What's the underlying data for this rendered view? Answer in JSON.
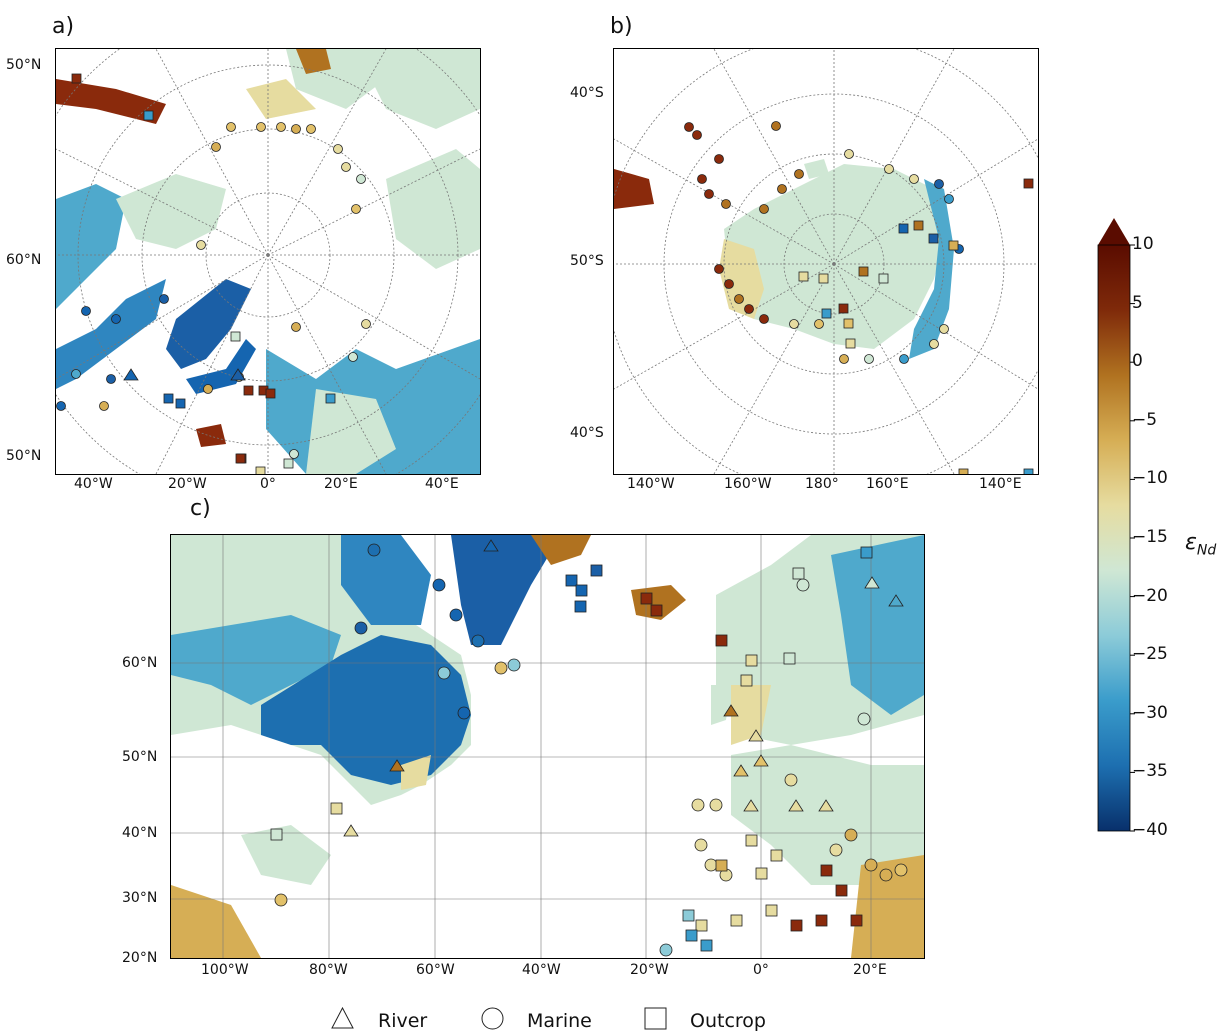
{
  "panels": {
    "a": {
      "label": "a)",
      "lat_ticks": [
        "50°N",
        "60°N",
        "50°N"
      ],
      "lon_ticks": [
        "40°W",
        "20°W",
        "0°",
        "20°E",
        "40°E"
      ]
    },
    "b": {
      "label": "b)",
      "lat_ticks": [
        "40°S",
        "50°S",
        "40°S"
      ],
      "lon_ticks": [
        "140°W",
        "160°W",
        "180°",
        "160°E",
        "140°E"
      ]
    },
    "c": {
      "label": "c)",
      "lat_ticks": [
        "60°N",
        "50°N",
        "40°N",
        "30°N",
        "20°N"
      ],
      "lon_ticks": [
        "100°W",
        "80°W",
        "60°W",
        "40°W",
        "20°W",
        "0°",
        "20°E"
      ]
    }
  },
  "colorbar": {
    "label_main": "ε",
    "label_sub": "Nd",
    "ticks": [
      "10",
      "5",
      "0",
      "−5",
      "−10",
      "−15",
      "−20",
      "−25",
      "−30",
      "−35",
      "−40"
    ],
    "range": [
      -40,
      10
    ],
    "colors": [
      "#08306b",
      "#1d6fb0",
      "#3a9ccb",
      "#8ccbd8",
      "#cfe7d4",
      "#e6dca0",
      "#d6ae55",
      "#b07220",
      "#7f2a0a",
      "#5a0c00"
    ],
    "extend": "max"
  },
  "legend": {
    "items": [
      {
        "marker": "triangle",
        "label": "River"
      },
      {
        "marker": "circle",
        "label": "Marine"
      },
      {
        "marker": "square",
        "label": "Outcrop"
      }
    ]
  }
}
